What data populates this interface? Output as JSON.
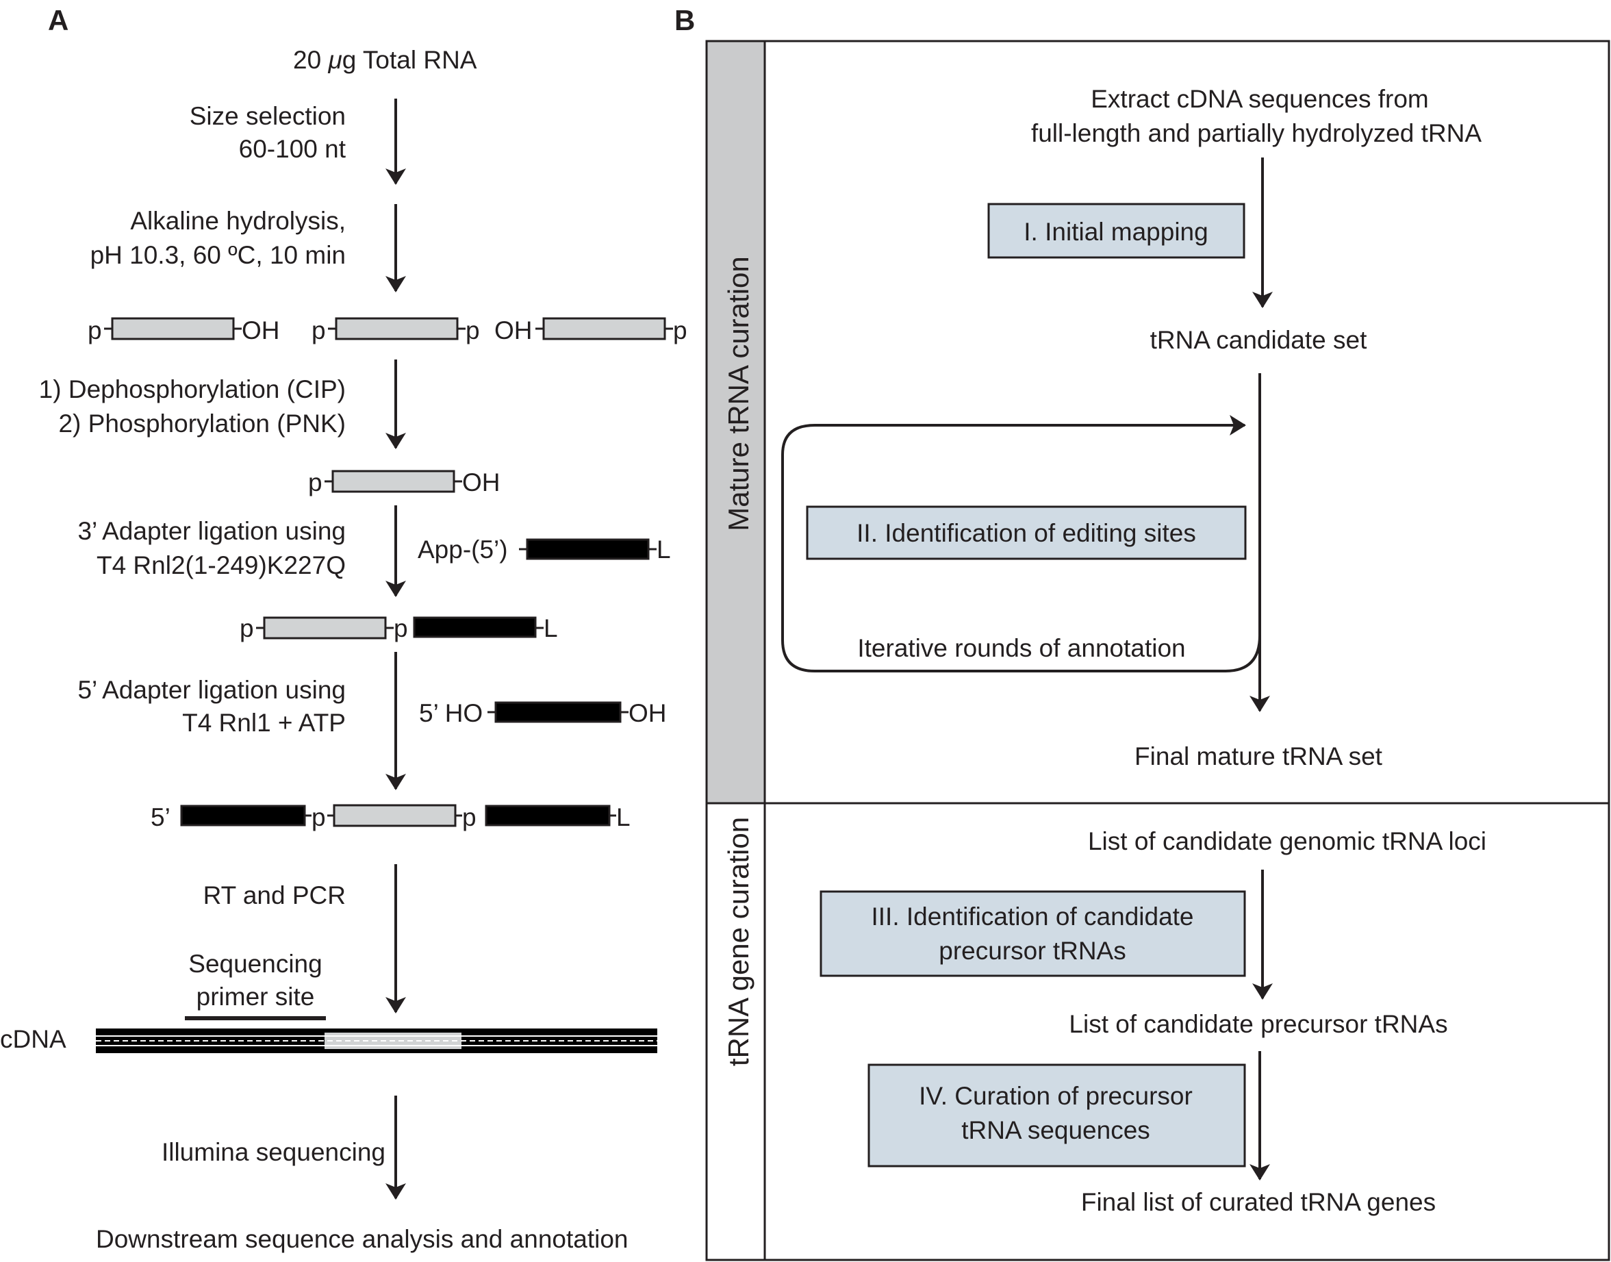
{
  "panel_a": {
    "letter": "A",
    "start": {
      "pre": "20 ",
      "mu": "μ",
      "post": "g Total RNA"
    },
    "step_size_selection": [
      "Size selection",
      "60-100 nt"
    ],
    "step_hydrolysis": [
      "Alkaline hydrolysis,",
      "pH 10.3, 60 ºC, 10 min"
    ],
    "fragments": {
      "p": "p",
      "oh": "OH"
    },
    "step_dephos": [
      "1) Dephosphorylation (CIP)",
      "2) Phosphorylation (PNK)"
    ],
    "step_3adapter": [
      "3’ Adapter ligation using",
      "T4 Rnl2(1-249)K227Q"
    ],
    "adapter3": {
      "left": "App-(5’)",
      "right": "L"
    },
    "step_5adapter": [
      "5’ Adapter ligation using",
      "T4 Rnl1 + ATP"
    ],
    "adapter5": {
      "left": "5’ HO",
      "right": "OH"
    },
    "ligated": {
      "five": "5’",
      "p": "p",
      "l": "L"
    },
    "step_rt": "RT and PCR",
    "primer_site": [
      "Sequencing",
      "primer site"
    ],
    "cdna": "cDNA",
    "step_illumina": "Illumina sequencing",
    "end": "Downstream sequence analysis and annotation"
  },
  "panel_b": {
    "letter": "B",
    "mature_label": "Mature tRNA curation",
    "gene_label": "tRNA gene curation",
    "extract": [
      "Extract cDNA sequences from",
      "full-length and partially hydrolyzed tRNA"
    ],
    "step1": "I. Initial mapping",
    "candidate_set": "tRNA candidate set",
    "step2": "II. Identification of editing sites",
    "iterative": "Iterative rounds of annotation",
    "final_mature": "Final mature tRNA set",
    "loci": "List of candidate genomic tRNA loci",
    "step3": [
      "III. Identification of candidate",
      "precursor tRNAs"
    ],
    "precursors": "List of candidate precursor tRNAs",
    "step4": [
      "IV. Curation of precursor",
      "tRNA sequences"
    ],
    "final_genes": "Final list of curated tRNA genes"
  },
  "colors": {
    "ink": "#231f20",
    "rna_fill": "#d1d3d4",
    "adapter_fill": "#000000",
    "side_fill": "#cacbcc",
    "step_box_fill": "#d0dbe4"
  }
}
